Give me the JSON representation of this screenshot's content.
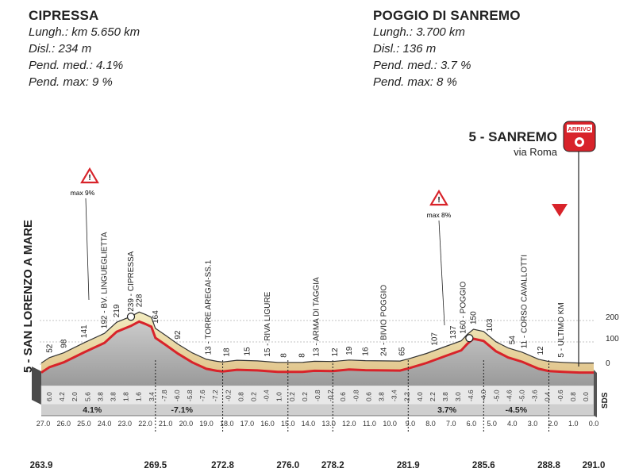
{
  "climb1": {
    "name": "CIPRESSA",
    "length": "Lungh.: km 5.650 km",
    "climb": "Disl.: 234 m",
    "avg": "Pend. med.: 4.1%",
    "max": "Pend. max:  9 %"
  },
  "climb2": {
    "name": "POGGIO DI SANREMO",
    "length": "Lungh.: 3.700 km",
    "climb": "Disl.: 136 m",
    "avg": "Pend. med.: 3.7 %",
    "max": "Pend. max:  8 %"
  },
  "start": {
    "label": "5 - SAN LORENZO A MARE"
  },
  "finish": {
    "city": "5 - SANREMO",
    "street": "via Roma",
    "badge": "ARRIVO"
  },
  "max_markers": [
    "max 9%",
    "max 8%"
  ],
  "altitude_ticks": [
    "200",
    "100",
    "0"
  ],
  "sds_label": "SDS",
  "profile": {
    "km": [
      263.9,
      264.3,
      265.0,
      266.0,
      267.0,
      267.6,
      268.3,
      268.7,
      269.0,
      269.3,
      269.5,
      270.0,
      270.6,
      271.3,
      272.0,
      272.5,
      272.8,
      273.5,
      274.5,
      275.5,
      276.0,
      276.7,
      277.3,
      278.2,
      279.0,
      279.8,
      280.7,
      281.5,
      281.9,
      282.8,
      283.7,
      284.5,
      284.8,
      285.1,
      285.6,
      286.2,
      286.8,
      287.5,
      288.3,
      288.8,
      289.5,
      290.3,
      291.0
    ],
    "alt": [
      5,
      30,
      52,
      98,
      141,
      192,
      219,
      239,
      228,
      215,
      164,
      132,
      92,
      52,
      22,
      13,
      10,
      18,
      15,
      8,
      8,
      8,
      13,
      12,
      19,
      16,
      15,
      14,
      24,
      49,
      80,
      107,
      137,
      160,
      150,
      103,
      74,
      54,
      22,
      12,
      8,
      5,
      5
    ]
  },
  "point_labels": [
    {
      "km": 264.3,
      "text": "52"
    },
    {
      "km": 265.0,
      "text": "98"
    },
    {
      "km": 266.0,
      "text": "141"
    },
    {
      "km": 267.0,
      "text": "192 - BV. LINGUEGLIETTA"
    },
    {
      "km": 267.6,
      "text": "219"
    },
    {
      "km": 268.3,
      "text": "239 - CIPRESSA"
    },
    {
      "km": 268.7,
      "text": "228"
    },
    {
      "km": 269.5,
      "text": "164"
    },
    {
      "km": 270.6,
      "text": "92"
    },
    {
      "km": 272.1,
      "text": "13 - TORRE AREGAI-SS.1"
    },
    {
      "km": 273.0,
      "text": "18"
    },
    {
      "km": 274.0,
      "text": "15"
    },
    {
      "km": 275.0,
      "text": "15 - RIVA LIGURE"
    },
    {
      "km": 275.8,
      "text": "8"
    },
    {
      "km": 276.7,
      "text": "8"
    },
    {
      "km": 277.4,
      "text": "13 - ARMA DI TAGGIA"
    },
    {
      "km": 278.3,
      "text": "12"
    },
    {
      "km": 279.0,
      "text": "19"
    },
    {
      "km": 279.8,
      "text": "16"
    },
    {
      "km": 280.7,
      "text": "24 - BIVIO POGGIO"
    },
    {
      "km": 281.6,
      "text": "65"
    },
    {
      "km": 283.2,
      "text": "107"
    },
    {
      "km": 284.1,
      "text": "137"
    },
    {
      "km": 284.6,
      "text": "160 - POGGIO"
    },
    {
      "km": 285.1,
      "text": "150"
    },
    {
      "km": 285.9,
      "text": "103"
    },
    {
      "km": 287.0,
      "text": "54"
    },
    {
      "km": 287.6,
      "text": "11 - CORSO CAVALLOTTI"
    },
    {
      "km": 288.4,
      "text": "12"
    },
    {
      "km": 289.4,
      "text": "5 - ULTIMO KM"
    }
  ],
  "gradients": [
    "6.0",
    "4.2",
    "2.0",
    "5.6",
    "3.8",
    "3.8",
    "1.8",
    "1.6",
    "3.4",
    "-7.8",
    "-6.0",
    "-5.8",
    "-7.6",
    "-7.2",
    "-0.2",
    "0.8",
    "0.2",
    "-0.4",
    "1.0",
    "0.2",
    "0.2",
    "-0.8",
    "-0.2",
    "0.6",
    "-0.8",
    "0.6",
    "3.8",
    "-3.4",
    "2.2",
    "4.0",
    "2.2",
    "3.8",
    "3.0",
    "-4.6",
    "-4.0",
    "-5.0",
    "-4.6",
    "-5.0",
    "-3.6",
    "0.4",
    "-0.6",
    "0.8",
    "0.0"
  ],
  "avg_grades": [
    {
      "km": 266.4,
      "text": "4.1%"
    },
    {
      "km": 270.8,
      "text": "-7.1%"
    },
    {
      "km": 283.8,
      "text": "3.7%"
    },
    {
      "km": 287.2,
      "text": "-4.5%"
    }
  ],
  "km_to_go": [
    "27.0",
    "26.0",
    "25.0",
    "24.0",
    "23.0",
    "22.0",
    "21.0",
    "20.0",
    "19.0",
    "18.0",
    "17.0",
    "16.0",
    "15.0",
    "14.0",
    "13.0",
    "12.0",
    "11.0",
    "10.0",
    "9.0",
    "8.0",
    "7.0",
    "6.0",
    "5.0",
    "4.0",
    "3.0",
    "2.0",
    "1.0",
    "0.0"
  ],
  "km_markers": [
    "263.9",
    "269.5",
    "272.8",
    "276.0",
    "278.2",
    "281.9",
    "285.6",
    "288.8",
    "291.0"
  ],
  "colors": {
    "route": "#d8232a",
    "fill_top": "#f3eaa8",
    "fill_mid": "#e9b26a",
    "fill_body": "#bcbcbc",
    "band": "#cfcfcf",
    "arrow": "#d8232a"
  }
}
